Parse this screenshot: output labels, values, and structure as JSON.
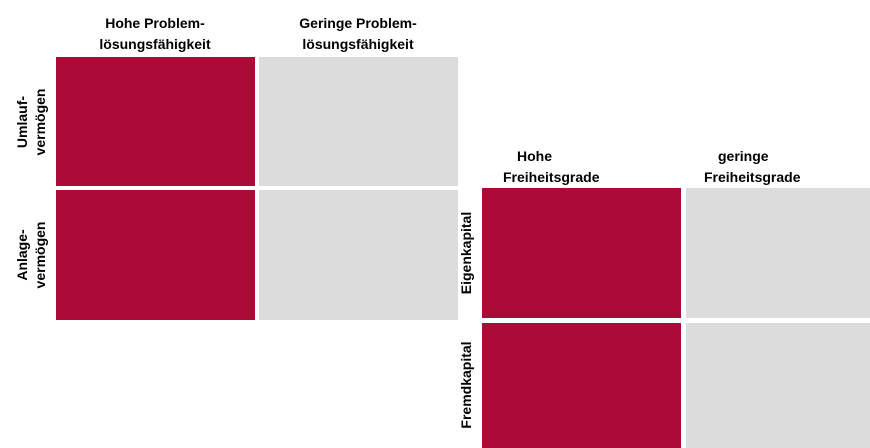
{
  "left_matrix": {
    "columns": [
      [
        "Hohe Problem-",
        "lösungsfähigkeit"
      ],
      [
        "Geringe Problem-",
        "lösungsfähigkeit"
      ]
    ],
    "rows": [
      [
        "Umlauf-",
        "vermögen"
      ],
      [
        "Anlage-",
        "vermögen"
      ]
    ]
  },
  "right_matrix": {
    "columns": [
      [
        "Hohe",
        "Freiheitsgrade"
      ],
      [
        "geringe",
        "Freiheitsgrade"
      ]
    ],
    "rows": [
      "Eigenkapital",
      "Fremdkapital"
    ]
  }
}
